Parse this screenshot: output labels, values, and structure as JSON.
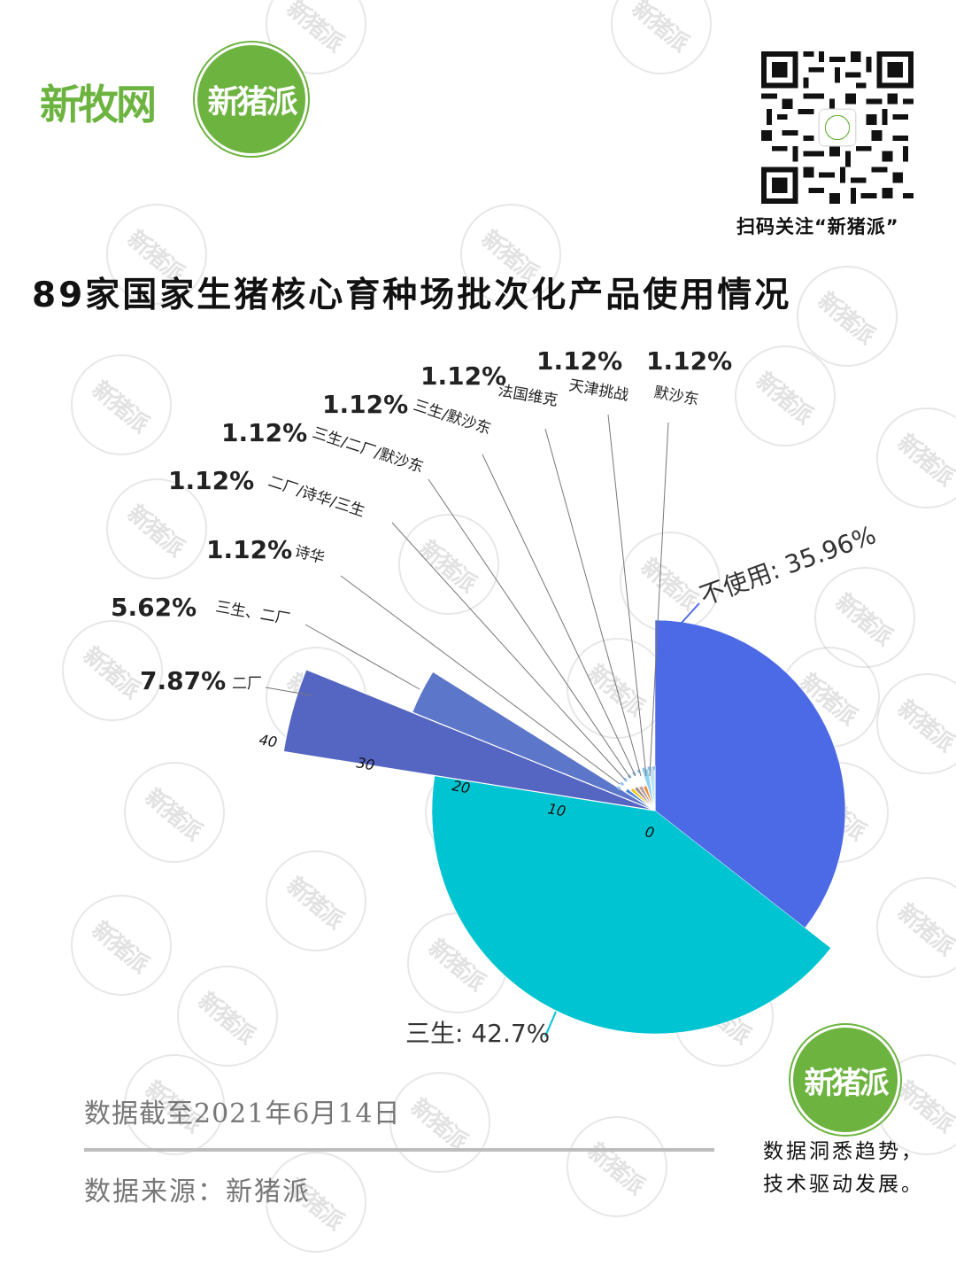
{
  "header": {
    "brand_left": "新牧网",
    "brand_logo": "新猪派",
    "qr_logo_text": "新猪派",
    "qr_caption": "扫码关注“新猪派”"
  },
  "title": "89家国家生猪核心育种场批次化产品使用情况",
  "footer": {
    "cutoff": "数据截至2021年6月14日",
    "source": "数据来源：新猪派",
    "brand_logo": "新猪派",
    "slogan_line1": "数据洞悉趋势，",
    "slogan_line2": "技术驱动发展。"
  },
  "watermark_text": "新猪派",
  "colors": {
    "brand_green": "#6cb33f",
    "not_used": "#4d6ae6",
    "sansheng": "#00c4d1",
    "erchang": "#5565c2",
    "sansheng_erchang": "#5c77c9"
  },
  "chart_data": {
    "type": "pie",
    "subtype": "rose (nightingale), radial axis",
    "title": "89家国家生猪核心育种场批次化产品使用情况",
    "total_farms": 89,
    "radial_axis_ticks": [
      "0",
      "10",
      "20",
      "30",
      "40"
    ],
    "slices": [
      {
        "name": "不使用",
        "value": 35.96,
        "label": "不使用: 35.96%",
        "color": "#4d6ae6"
      },
      {
        "name": "三生",
        "value": 42.7,
        "label": "三生: 42.7%",
        "color": "#00c4d1"
      },
      {
        "name": "二厂",
        "value": 7.87,
        "label": "7.87%",
        "color": "#5565c2"
      },
      {
        "name": "三生、二厂",
        "value": 5.62,
        "label": "5.62%",
        "color": "#5c77c9"
      },
      {
        "name": "诗华",
        "value": 1.12,
        "label": "1.12%",
        "color": "#4f86d9"
      },
      {
        "name": "二厂/诗华/三生",
        "value": 1.12,
        "label": "1.12%",
        "color": "#f5c518"
      },
      {
        "name": "三生/二厂/默沙东",
        "value": 1.12,
        "label": "1.12%",
        "color": "#9a8d86"
      },
      {
        "name": "三生/默沙东",
        "value": 1.12,
        "label": "1.12%",
        "color": "#b7a39b"
      },
      {
        "name": "法国维克",
        "value": 1.12,
        "label": "1.12%",
        "color": "#f08a3c"
      },
      {
        "name": "天津挑战",
        "value": 1.12,
        "label": "1.12%",
        "color": "#8fd3f0"
      },
      {
        "name": "默沙东",
        "value": 1.12,
        "label": "1.12%",
        "color": "#bfe3f5"
      }
    ],
    "legend": "none (callout labels)"
  }
}
